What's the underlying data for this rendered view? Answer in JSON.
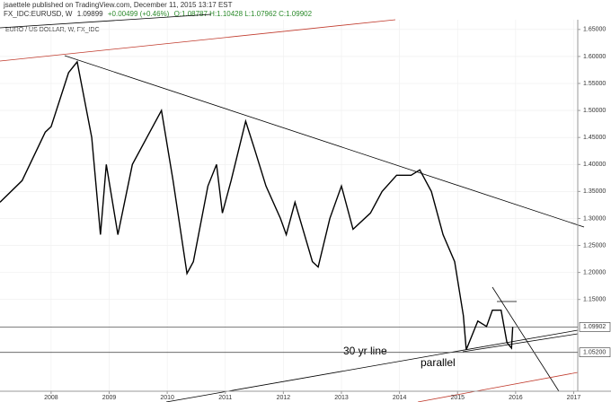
{
  "chart_data": {
    "type": "line",
    "header": "jsaettele published on TradingView.com, December 11, 2015 13:17 EST",
    "symbol": "FX_IDC:EURUSD, W",
    "last": "1.09899",
    "change": "+0.00499 (+0.46%)",
    "ohlc": "O:1.08787 H:1.10428 L:1.07962 C:1.09902",
    "title": "EURO / US DOLLAR, W, FX_IDC",
    "annotations": [
      "30 yr line",
      "parallel"
    ],
    "x": [
      2007.12,
      2007.5,
      2007.9,
      2008.0,
      2008.3,
      2008.45,
      2008.7,
      2008.85,
      2008.95,
      2009.15,
      2009.4,
      2009.7,
      2009.9,
      2010.1,
      2010.34,
      2010.45,
      2010.7,
      2010.85,
      2010.95,
      2011.1,
      2011.35,
      2011.5,
      2011.7,
      2011.95,
      2012.05,
      2012.2,
      2012.5,
      2012.6,
      2012.8,
      2013.0,
      2013.2,
      2013.5,
      2013.7,
      2013.95,
      2014.2,
      2014.35,
      2014.55,
      2014.75,
      2014.95,
      2015.1,
      2015.15,
      2015.35,
      2015.5,
      2015.6,
      2015.75,
      2015.85,
      2015.93,
      2015.95
    ],
    "values": [
      1.33,
      1.37,
      1.46,
      1.47,
      1.57,
      1.59,
      1.45,
      1.27,
      1.4,
      1.27,
      1.4,
      1.46,
      1.5,
      1.37,
      1.198,
      1.22,
      1.36,
      1.4,
      1.31,
      1.37,
      1.48,
      1.43,
      1.36,
      1.3,
      1.27,
      1.33,
      1.22,
      1.21,
      1.3,
      1.36,
      1.28,
      1.31,
      1.35,
      1.38,
      1.38,
      1.39,
      1.35,
      1.27,
      1.22,
      1.12,
      1.057,
      1.11,
      1.1,
      1.13,
      1.13,
      1.07,
      1.06,
      1.099
    ],
    "color": "#000000",
    "xlim": [
      2007.12,
      2017.07
    ],
    "xticks": [
      2008,
      2009,
      2010,
      2011,
      2012,
      2013,
      2014,
      2015,
      2016,
      2017
    ],
    "ylim": [
      0.98,
      1.668
    ],
    "yticks": [
      {
        "value": 1.65,
        "label": "1.65000"
      },
      {
        "value": 1.6,
        "label": "1.60000"
      },
      {
        "value": 1.55,
        "label": "1.55000"
      },
      {
        "value": 1.5,
        "label": "1.50000"
      },
      {
        "value": 1.45,
        "label": "1.45000"
      },
      {
        "value": 1.4,
        "label": "1.40000"
      },
      {
        "value": 1.35,
        "label": "1.35000"
      },
      {
        "value": 1.3,
        "label": "1.30000"
      },
      {
        "value": 1.25,
        "label": "1.25000"
      },
      {
        "value": 1.2,
        "label": "1.20000"
      },
      {
        "value": 1.15,
        "label": "1.15000"
      }
    ],
    "price_lines": [
      1.09902,
      {
        "value": 1.052,
        "label": "1.05200"
      }
    ],
    "grid": true
  }
}
